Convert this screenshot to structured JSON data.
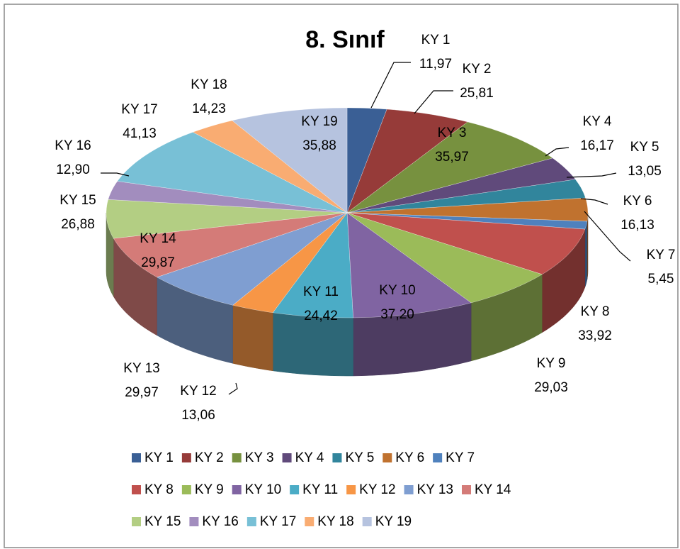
{
  "chart_data": {
    "type": "pie3d",
    "title": "8. Sınıf",
    "categories": [
      "KY 1",
      "KY 2",
      "KY 3",
      "KY 4",
      "KY 5",
      "KY 6",
      "KY 7",
      "KY 8",
      "KY 9",
      "KY 10",
      "KY 11",
      "KY 12",
      "KY 13",
      "KY 14",
      "KY 15",
      "KY 16",
      "KY 17",
      "KY 18",
      "KY 19"
    ],
    "values": [
      11.97,
      25.81,
      35.97,
      16.17,
      13.05,
      16.13,
      5.45,
      33.92,
      29.03,
      37.2,
      24.42,
      13.06,
      29.97,
      29.87,
      26.88,
      12.9,
      41.13,
      14.23,
      35.88
    ],
    "value_labels": [
      "11,97",
      "25,81",
      "35,97",
      "16,17",
      "13,05",
      "16,13",
      "5,45",
      "33,92",
      "29,03",
      "37,20",
      "24,42",
      "13,06",
      "29,97",
      "29,87",
      "26,88",
      "12,90",
      "41,13",
      "14,23",
      "35,88"
    ],
    "colors": [
      "#3A5F95",
      "#963B39",
      "#77913F",
      "#604A7B",
      "#31859C",
      "#C0722F",
      "#4F81BD",
      "#C0504D",
      "#9BBB59",
      "#8064A2",
      "#4BACC6",
      "#F79646",
      "#7F9ED1",
      "#D47B78",
      "#B3CE83",
      "#A28DBE",
      "#78C0D6",
      "#F9AC72",
      "#B6C3DF"
    ],
    "legend": "bottom"
  }
}
